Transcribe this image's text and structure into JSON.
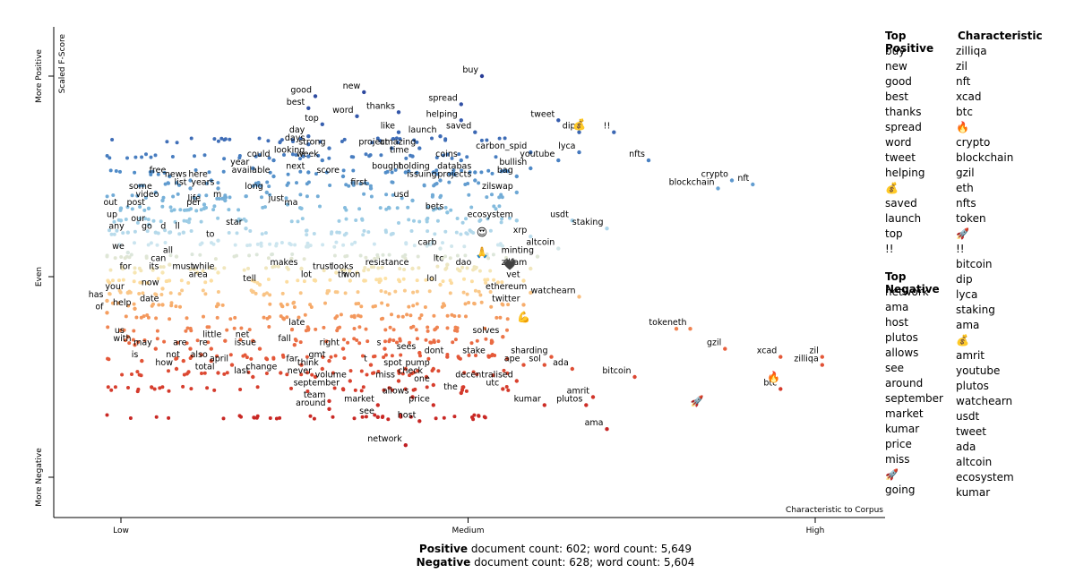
{
  "chart_data": {
    "type": "scatter",
    "xlabel": "Characteristic to Corpus",
    "ylabel": "Scaled F-Score",
    "x_ticks": [
      "Low",
      "Medium",
      "High"
    ],
    "y_ticks": [
      "More Negative",
      "Even",
      "More Positive"
    ],
    "x_range": [
      0,
      1
    ],
    "y_range": [
      0,
      1
    ],
    "labeled_points": [
      {
        "term": "buy",
        "x": 0.52,
        "y": 1.0
      },
      {
        "term": "new",
        "x": 0.35,
        "y": 0.96
      },
      {
        "term": "good",
        "x": 0.28,
        "y": 0.95
      },
      {
        "term": "best",
        "x": 0.27,
        "y": 0.92
      },
      {
        "term": "thanks",
        "x": 0.4,
        "y": 0.91
      },
      {
        "term": "spread",
        "x": 0.49,
        "y": 0.93
      },
      {
        "term": "word",
        "x": 0.34,
        "y": 0.9
      },
      {
        "term": "helping",
        "x": 0.49,
        "y": 0.89
      },
      {
        "term": "top",
        "x": 0.29,
        "y": 0.88
      },
      {
        "term": "tweet",
        "x": 0.63,
        "y": 0.89
      },
      {
        "term": "dip",
        "x": 0.66,
        "y": 0.86
      },
      {
        "term": "!!",
        "x": 0.71,
        "y": 0.86
      },
      {
        "term": "like",
        "x": 0.4,
        "y": 0.86
      },
      {
        "term": "saved",
        "x": 0.51,
        "y": 0.86
      },
      {
        "term": "launch",
        "x": 0.46,
        "y": 0.85
      },
      {
        "term": "day",
        "x": 0.27,
        "y": 0.85
      },
      {
        "term": "days",
        "x": 0.27,
        "y": 0.83
      },
      {
        "term": "project",
        "x": 0.39,
        "y": 0.82
      },
      {
        "term": "amazing",
        "x": 0.43,
        "y": 0.82
      },
      {
        "term": "strong",
        "x": 0.3,
        "y": 0.82
      },
      {
        "term": "carbon_spid",
        "x": 0.59,
        "y": 0.81
      },
      {
        "term": "lyca",
        "x": 0.66,
        "y": 0.81
      },
      {
        "term": "time",
        "x": 0.42,
        "y": 0.8
      },
      {
        "term": "week",
        "x": 0.29,
        "y": 0.79
      },
      {
        "term": "looking",
        "x": 0.27,
        "y": 0.8
      },
      {
        "term": "could",
        "x": 0.22,
        "y": 0.79
      },
      {
        "term": "coins",
        "x": 0.49,
        "y": 0.79
      },
      {
        "term": "youtube",
        "x": 0.63,
        "y": 0.79
      },
      {
        "term": "nfts",
        "x": 0.76,
        "y": 0.79
      },
      {
        "term": "year",
        "x": 0.19,
        "y": 0.77
      },
      {
        "term": "bought",
        "x": 0.41,
        "y": 0.76
      },
      {
        "term": "holding",
        "x": 0.45,
        "y": 0.76
      },
      {
        "term": "databas",
        "x": 0.51,
        "y": 0.76
      },
      {
        "term": "bullish",
        "x": 0.59,
        "y": 0.77
      },
      {
        "term": "next",
        "x": 0.27,
        "y": 0.76
      },
      {
        "term": "available",
        "x": 0.22,
        "y": 0.75
      },
      {
        "term": "score",
        "x": 0.32,
        "y": 0.75
      },
      {
        "term": "bag",
        "x": 0.57,
        "y": 0.75
      },
      {
        "term": "crypto",
        "x": 0.88,
        "y": 0.74
      },
      {
        "term": "free",
        "x": 0.07,
        "y": 0.75
      },
      {
        "term": "news",
        "x": 0.1,
        "y": 0.74
      },
      {
        "term": "here",
        "x": 0.13,
        "y": 0.74
      },
      {
        "term": "issuing",
        "x": 0.46,
        "y": 0.74
      },
      {
        "term": "projects",
        "x": 0.51,
        "y": 0.74
      },
      {
        "term": "blockchain",
        "x": 0.86,
        "y": 0.72
      },
      {
        "term": "nft",
        "x": 0.91,
        "y": 0.73
      },
      {
        "term": "list",
        "x": 0.1,
        "y": 0.72
      },
      {
        "term": "years",
        "x": 0.14,
        "y": 0.72
      },
      {
        "term": "first",
        "x": 0.36,
        "y": 0.72
      },
      {
        "term": "some",
        "x": 0.05,
        "y": 0.71
      },
      {
        "term": "long",
        "x": 0.21,
        "y": 0.71
      },
      {
        "term": "zilswap",
        "x": 0.57,
        "y": 0.71
      },
      {
        "term": "video",
        "x": 0.06,
        "y": 0.69
      },
      {
        "term": "life",
        "x": 0.12,
        "y": 0.68
      },
      {
        "term": "m",
        "x": 0.15,
        "y": 0.69
      },
      {
        "term": "usd",
        "x": 0.42,
        "y": 0.69
      },
      {
        "term": "just",
        "x": 0.24,
        "y": 0.68
      },
      {
        "term": "post",
        "x": 0.04,
        "y": 0.67
      },
      {
        "term": "per",
        "x": 0.12,
        "y": 0.67
      },
      {
        "term": "ma",
        "x": 0.26,
        "y": 0.67
      },
      {
        "term": "out",
        "x": 0.0,
        "y": 0.67
      },
      {
        "term": "bets",
        "x": 0.47,
        "y": 0.66
      },
      {
        "term": "ecosystem",
        "x": 0.57,
        "y": 0.64
      },
      {
        "term": "usdt",
        "x": 0.65,
        "y": 0.64
      },
      {
        "term": "up",
        "x": 0.0,
        "y": 0.64
      },
      {
        "term": "our",
        "x": 0.04,
        "y": 0.63
      },
      {
        "term": "star",
        "x": 0.18,
        "y": 0.62
      },
      {
        "term": "staking",
        "x": 0.7,
        "y": 0.62
      },
      {
        "term": "any",
        "x": 0.01,
        "y": 0.61
      },
      {
        "term": "go",
        "x": 0.05,
        "y": 0.61
      },
      {
        "term": "d",
        "x": 0.07,
        "y": 0.61
      },
      {
        "term": "ll",
        "x": 0.09,
        "y": 0.61
      },
      {
        "term": "xrp",
        "x": 0.59,
        "y": 0.6
      },
      {
        "term": "to",
        "x": 0.14,
        "y": 0.59
      },
      {
        "term": "altcoin",
        "x": 0.63,
        "y": 0.57
      },
      {
        "term": "carb",
        "x": 0.46,
        "y": 0.57
      },
      {
        "term": "we",
        "x": 0.01,
        "y": 0.56
      },
      {
        "term": "minting",
        "x": 0.6,
        "y": 0.55
      },
      {
        "term": "all",
        "x": 0.08,
        "y": 0.55
      },
      {
        "term": "can",
        "x": 0.07,
        "y": 0.53
      },
      {
        "term": "ltc",
        "x": 0.47,
        "y": 0.53
      },
      {
        "term": "zilfam",
        "x": 0.59,
        "y": 0.52
      },
      {
        "term": "makes",
        "x": 0.26,
        "y": 0.52
      },
      {
        "term": "resistance",
        "x": 0.42,
        "y": 0.52
      },
      {
        "term": "dao",
        "x": 0.51,
        "y": 0.52
      },
      {
        "term": "for",
        "x": 0.02,
        "y": 0.51
      },
      {
        "term": "its",
        "x": 0.06,
        "y": 0.51
      },
      {
        "term": "must",
        "x": 0.11,
        "y": 0.51
      },
      {
        "term": "while",
        "x": 0.14,
        "y": 0.51
      },
      {
        "term": "trust",
        "x": 0.31,
        "y": 0.51
      },
      {
        "term": "looks",
        "x": 0.34,
        "y": 0.51
      },
      {
        "term": "area",
        "x": 0.13,
        "y": 0.49
      },
      {
        "term": "lot",
        "x": 0.28,
        "y": 0.49
      },
      {
        "term": "th",
        "x": 0.33,
        "y": 0.49
      },
      {
        "term": "won",
        "x": 0.35,
        "y": 0.49
      },
      {
        "term": "vet",
        "x": 0.58,
        "y": 0.49
      },
      {
        "term": "lol",
        "x": 0.46,
        "y": 0.48
      },
      {
        "term": "tell",
        "x": 0.2,
        "y": 0.48
      },
      {
        "term": "now",
        "x": 0.06,
        "y": 0.47
      },
      {
        "term": "ethereum",
        "x": 0.59,
        "y": 0.46
      },
      {
        "term": "watchearn",
        "x": 0.66,
        "y": 0.45
      },
      {
        "term": "your",
        "x": 0.01,
        "y": 0.46
      },
      {
        "term": "has",
        "x": -0.02,
        "y": 0.44
      },
      {
        "term": "date",
        "x": 0.06,
        "y": 0.43
      },
      {
        "term": "help",
        "x": 0.02,
        "y": 0.42
      },
      {
        "term": "twitter",
        "x": 0.58,
        "y": 0.43
      },
      {
        "term": "of",
        "x": -0.02,
        "y": 0.41
      },
      {
        "term": "token",
        "x": 0.8,
        "y": 0.37
      },
      {
        "term": "eth",
        "x": 0.82,
        "y": 0.37
      },
      {
        "term": "late",
        "x": 0.27,
        "y": 0.37
      },
      {
        "term": "us",
        "x": 0.01,
        "y": 0.35
      },
      {
        "term": "solves",
        "x": 0.55,
        "y": 0.35
      },
      {
        "term": "little",
        "x": 0.15,
        "y": 0.34
      },
      {
        "term": "net",
        "x": 0.19,
        "y": 0.34
      },
      {
        "term": "with",
        "x": 0.02,
        "y": 0.33
      },
      {
        "term": "fall",
        "x": 0.25,
        "y": 0.33
      },
      {
        "term": "may",
        "x": 0.05,
        "y": 0.32
      },
      {
        "term": "are",
        "x": 0.1,
        "y": 0.32
      },
      {
        "term": "re",
        "x": 0.13,
        "y": 0.32
      },
      {
        "term": "issue",
        "x": 0.2,
        "y": 0.32
      },
      {
        "term": "right",
        "x": 0.32,
        "y": 0.32
      },
      {
        "term": "s",
        "x": 0.38,
        "y": 0.32
      },
      {
        "term": "gzil",
        "x": 0.87,
        "y": 0.32
      },
      {
        "term": "sees",
        "x": 0.43,
        "y": 0.31
      },
      {
        "term": "xcad",
        "x": 0.95,
        "y": 0.3
      },
      {
        "term": "zil",
        "x": 1.01,
        "y": 0.3
      },
      {
        "term": "stake",
        "x": 0.53,
        "y": 0.3
      },
      {
        "term": "dont",
        "x": 0.47,
        "y": 0.3
      },
      {
        "term": "sharding",
        "x": 0.62,
        "y": 0.3
      },
      {
        "term": "is",
        "x": 0.03,
        "y": 0.29
      },
      {
        "term": "not",
        "x": 0.09,
        "y": 0.29
      },
      {
        "term": "also",
        "x": 0.13,
        "y": 0.29
      },
      {
        "term": "april",
        "x": 0.16,
        "y": 0.28
      },
      {
        "term": "far",
        "x": 0.26,
        "y": 0.28
      },
      {
        "term": "gmt",
        "x": 0.3,
        "y": 0.29
      },
      {
        "term": "t",
        "x": 0.36,
        "y": 0.28
      },
      {
        "term": "zilliqa",
        "x": 1.01,
        "y": 0.28
      },
      {
        "term": "ape",
        "x": 0.58,
        "y": 0.28
      },
      {
        "term": "sol",
        "x": 0.61,
        "y": 0.28
      },
      {
        "term": "pump",
        "x": 0.45,
        "y": 0.27
      },
      {
        "term": "how",
        "x": 0.08,
        "y": 0.27
      },
      {
        "term": "think",
        "x": 0.29,
        "y": 0.27
      },
      {
        "term": "ada",
        "x": 0.65,
        "y": 0.27
      },
      {
        "term": "spot",
        "x": 0.41,
        "y": 0.27
      },
      {
        "term": "change",
        "x": 0.23,
        "y": 0.26
      },
      {
        "term": "total",
        "x": 0.14,
        "y": 0.26
      },
      {
        "term": "never",
        "x": 0.28,
        "y": 0.25
      },
      {
        "term": "check",
        "x": 0.44,
        "y": 0.25
      },
      {
        "term": "bitcoin",
        "x": 0.74,
        "y": 0.25
      },
      {
        "term": "last",
        "x": 0.19,
        "y": 0.25
      },
      {
        "term": "volume",
        "x": 0.33,
        "y": 0.24
      },
      {
        "term": "miss",
        "x": 0.4,
        "y": 0.24
      },
      {
        "term": "decentralised",
        "x": 0.57,
        "y": 0.24
      },
      {
        "term": "one",
        "x": 0.45,
        "y": 0.23
      },
      {
        "term": "september",
        "x": 0.32,
        "y": 0.22
      },
      {
        "term": "utc",
        "x": 0.55,
        "y": 0.22
      },
      {
        "term": "the",
        "x": 0.49,
        "y": 0.21
      },
      {
        "term": "btc",
        "x": 0.95,
        "y": 0.22
      },
      {
        "term": "amrit",
        "x": 0.68,
        "y": 0.2
      },
      {
        "term": "allows",
        "x": 0.42,
        "y": 0.2
      },
      {
        "term": "team",
        "x": 0.3,
        "y": 0.19
      },
      {
        "term": "market",
        "x": 0.37,
        "y": 0.18
      },
      {
        "term": "price",
        "x": 0.45,
        "y": 0.18
      },
      {
        "term": "kumar",
        "x": 0.61,
        "y": 0.18
      },
      {
        "term": "plutos",
        "x": 0.67,
        "y": 0.18
      },
      {
        "term": "around",
        "x": 0.3,
        "y": 0.17
      },
      {
        "term": "see",
        "x": 0.37,
        "y": 0.15
      },
      {
        "term": "host",
        "x": 0.43,
        "y": 0.14
      },
      {
        "term": "ama",
        "x": 0.7,
        "y": 0.12
      },
      {
        "term": "network",
        "x": 0.41,
        "y": 0.08
      }
    ],
    "emoji_points": [
      {
        "glyph": "💰",
        "x": 0.66,
        "y": 0.88
      },
      {
        "glyph": "😍",
        "x": 0.52,
        "y": 0.61
      },
      {
        "glyph": "🙏",
        "x": 0.52,
        "y": 0.56
      },
      {
        "glyph": "🖤",
        "x": 0.56,
        "y": 0.53
      },
      {
        "glyph": "💪",
        "x": 0.58,
        "y": 0.4
      },
      {
        "glyph": "🔥",
        "x": 0.94,
        "y": 0.25
      },
      {
        "glyph": "🚀",
        "x": 0.83,
        "y": 0.19
      }
    ]
  },
  "sidebar": {
    "top_positive_title": "Top Positive",
    "top_positive": [
      "buy",
      "new",
      "good",
      "best",
      "thanks",
      "spread",
      "word",
      "tweet",
      "helping",
      "💰",
      "saved",
      "launch",
      "top",
      "!!"
    ],
    "top_negative_title": "Top Negative",
    "top_negative": [
      "network",
      "ama",
      "host",
      "plutos",
      "allows",
      "see",
      "around",
      "september",
      "market",
      "kumar",
      "price",
      "miss",
      "🚀",
      "going"
    ],
    "characteristic_title": "Characteristic",
    "characteristic": [
      "zilliqa",
      "zil",
      "nft",
      "xcad",
      "btc",
      "🔥",
      "crypto",
      "blockchain",
      "gzil",
      "eth",
      "nfts",
      "token",
      "🚀",
      "!!",
      "bitcoin",
      "dip",
      "lyca",
      "staking",
      "ama",
      "💰",
      "amrit",
      "youtube",
      "plutos",
      "watchearn",
      "usdt",
      "tweet",
      "ada",
      "altcoin",
      "ecosystem",
      "kumar"
    ]
  },
  "footer": {
    "positive_label": "Positive",
    "positive_text": " document count: 602; word count: 5,649",
    "negative_label": "Negative",
    "negative_text": " document count: 628; word count: 5,604"
  }
}
